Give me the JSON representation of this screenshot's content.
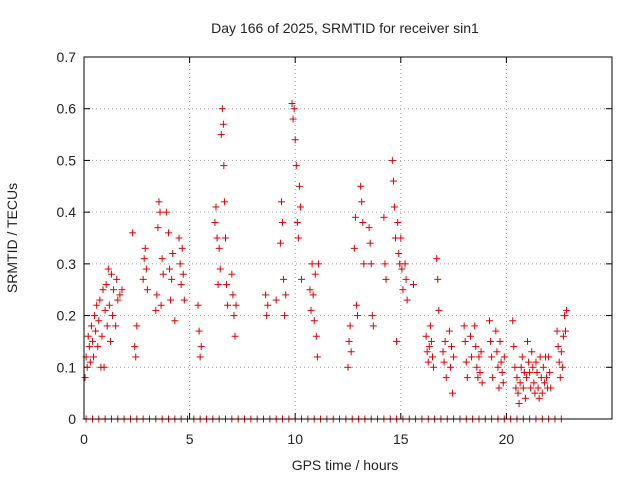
{
  "chart_data": {
    "type": "scatter",
    "title": "Day 166 of 2025, SRMTID for receiver sin1",
    "xlabel": "GPS time / hours",
    "ylabel": "SRMTID / TECUs",
    "xlim": [
      0,
      25
    ],
    "ylim": [
      0,
      0.7
    ],
    "xticks": [
      0,
      5,
      10,
      15,
      20
    ],
    "yticks": [
      0,
      0.1,
      0.2,
      0.3,
      0.4,
      0.5,
      0.6,
      0.7
    ],
    "xtick_labels": [
      "0",
      "5",
      "10",
      "15",
      "20"
    ],
    "ytick_labels": [
      "0",
      "0.1",
      "0.2",
      "0.3",
      "0.4",
      "0.5",
      "0.6",
      "0.7"
    ],
    "grid": true,
    "marker": "+",
    "color": "#e00000",
    "series": [
      {
        "name": "SRMTID",
        "points": [
          [
            0.05,
            0.08
          ],
          [
            0.1,
            0.12
          ],
          [
            0.15,
            0.1
          ],
          [
            0.2,
            0.16
          ],
          [
            0.25,
            0.14
          ],
          [
            0.3,
            0.11
          ],
          [
            0.35,
            0.18
          ],
          [
            0.4,
            0.15
          ],
          [
            0.45,
            0.12
          ],
          [
            0.5,
            0.2
          ],
          [
            0.55,
            0.17
          ],
          [
            0.6,
            0.22
          ],
          [
            0.65,
            0.14
          ],
          [
            0.7,
            0.19
          ],
          [
            0.75,
            0.23
          ],
          [
            0.8,
            0.1
          ],
          [
            0.85,
            0.16
          ],
          [
            0.9,
            0.25
          ],
          [
            0.95,
            0.1
          ],
          [
            1.0,
            0.21
          ],
          [
            1.05,
            0.26
          ],
          [
            1.1,
            0.18
          ],
          [
            1.15,
            0.29
          ],
          [
            1.2,
            0.22
          ],
          [
            1.25,
            0.15
          ],
          [
            1.3,
            0.28
          ],
          [
            1.35,
            0.2
          ],
          [
            1.4,
            0.25
          ],
          [
            1.5,
            0.18
          ],
          [
            1.55,
            0.27
          ],
          [
            1.6,
            0.23
          ],
          [
            1.7,
            0.24
          ],
          [
            1.8,
            0.25
          ],
          [
            2.3,
            0.36
          ],
          [
            2.4,
            0.14
          ],
          [
            2.45,
            0.12
          ],
          [
            2.5,
            0.18
          ],
          [
            2.8,
            0.27
          ],
          [
            2.85,
            0.31
          ],
          [
            2.9,
            0.33
          ],
          [
            2.95,
            0.29
          ],
          [
            3.0,
            0.25
          ],
          [
            3.4,
            0.21
          ],
          [
            3.45,
            0.24
          ],
          [
            3.5,
            0.37
          ],
          [
            3.55,
            0.42
          ],
          [
            3.6,
            0.4
          ],
          [
            3.65,
            0.22
          ],
          [
            3.7,
            0.31
          ],
          [
            3.75,
            0.28
          ],
          [
            3.9,
            0.4
          ],
          [
            4.0,
            0.36
          ],
          [
            4.05,
            0.29
          ],
          [
            4.1,
            0.23
          ],
          [
            4.15,
            0.27
          ],
          [
            4.2,
            0.32
          ],
          [
            4.3,
            0.19
          ],
          [
            4.5,
            0.35
          ],
          [
            4.55,
            0.3
          ],
          [
            4.6,
            0.26
          ],
          [
            4.65,
            0.33
          ],
          [
            4.7,
            0.28
          ],
          [
            4.75,
            0.23
          ],
          [
            5.4,
            0.22
          ],
          [
            5.45,
            0.17
          ],
          [
            5.5,
            0.12
          ],
          [
            5.55,
            0.14
          ],
          [
            6.2,
            0.38
          ],
          [
            6.25,
            0.41
          ],
          [
            6.3,
            0.35
          ],
          [
            6.35,
            0.26
          ],
          [
            6.4,
            0.33
          ],
          [
            6.45,
            0.29
          ],
          [
            6.5,
            0.55
          ],
          [
            6.55,
            0.6
          ],
          [
            6.6,
            0.57
          ],
          [
            6.62,
            0.49
          ],
          [
            6.65,
            0.42
          ],
          [
            6.7,
            0.35
          ],
          [
            6.75,
            0.26
          ],
          [
            6.8,
            0.22
          ],
          [
            7.0,
            0.28
          ],
          [
            7.05,
            0.24
          ],
          [
            7.1,
            0.2
          ],
          [
            7.15,
            0.16
          ],
          [
            7.2,
            0.22
          ],
          [
            8.6,
            0.24
          ],
          [
            8.65,
            0.2
          ],
          [
            8.7,
            0.22
          ],
          [
            9.1,
            0.23
          ],
          [
            9.3,
            0.34
          ],
          [
            9.35,
            0.42
          ],
          [
            9.4,
            0.38
          ],
          [
            9.45,
            0.27
          ],
          [
            9.5,
            0.2
          ],
          [
            9.55,
            0.24
          ],
          [
            9.85,
            0.61
          ],
          [
            9.9,
            0.58
          ],
          [
            9.95,
            0.6
          ],
          [
            10.0,
            0.54
          ],
          [
            10.05,
            0.49
          ],
          [
            10.1,
            0.38
          ],
          [
            10.15,
            0.35
          ],
          [
            10.2,
            0.45
          ],
          [
            10.25,
            0.41
          ],
          [
            10.3,
            0.27
          ],
          [
            10.7,
            0.25
          ],
          [
            10.75,
            0.21
          ],
          [
            10.8,
            0.3
          ],
          [
            10.85,
            0.24
          ],
          [
            10.9,
            0.19
          ],
          [
            10.95,
            0.28
          ],
          [
            11.0,
            0.16
          ],
          [
            11.05,
            0.12
          ],
          [
            11.1,
            0.3
          ],
          [
            12.5,
            0.1
          ],
          [
            12.55,
            0.15
          ],
          [
            12.6,
            0.18
          ],
          [
            12.65,
            0.13
          ],
          [
            12.8,
            0.33
          ],
          [
            12.85,
            0.39
          ],
          [
            12.9,
            0.22
          ],
          [
            12.95,
            0.2
          ],
          [
            13.1,
            0.45
          ],
          [
            13.15,
            0.42
          ],
          [
            13.2,
            0.38
          ],
          [
            13.25,
            0.3
          ],
          [
            13.5,
            0.37
          ],
          [
            13.55,
            0.34
          ],
          [
            13.6,
            0.3
          ],
          [
            13.65,
            0.2
          ],
          [
            13.7,
            0.18
          ],
          [
            14.2,
            0.39
          ],
          [
            14.25,
            0.3
          ],
          [
            14.3,
            0.27
          ],
          [
            14.6,
            0.5
          ],
          [
            14.65,
            0.46
          ],
          [
            14.7,
            0.41
          ],
          [
            14.75,
            0.35
          ],
          [
            14.8,
            0.15
          ],
          [
            14.85,
            0.38
          ],
          [
            14.9,
            0.32
          ],
          [
            14.95,
            0.3
          ],
          [
            15.0,
            0.35
          ],
          [
            15.05,
            0.29
          ],
          [
            15.1,
            0.25
          ],
          [
            15.2,
            0.3
          ],
          [
            15.25,
            0.27
          ],
          [
            15.3,
            0.23
          ],
          [
            15.6,
            0.26
          ],
          [
            16.2,
            0.16
          ],
          [
            16.25,
            0.13
          ],
          [
            16.3,
            0.11
          ],
          [
            16.35,
            0.14
          ],
          [
            16.4,
            0.18
          ],
          [
            16.45,
            0.15
          ],
          [
            16.5,
            0.12
          ],
          [
            16.55,
            0.1
          ],
          [
            16.7,
            0.31
          ],
          [
            16.75,
            0.27
          ],
          [
            16.8,
            0.21
          ],
          [
            17.0,
            0.13
          ],
          [
            17.05,
            0.11
          ],
          [
            17.1,
            0.15
          ],
          [
            17.15,
            0.08
          ],
          [
            17.3,
            0.17
          ],
          [
            17.35,
            0.1
          ],
          [
            17.4,
            0.14
          ],
          [
            17.45,
            0.05
          ],
          [
            17.5,
            0.12
          ],
          [
            18.0,
            0.18
          ],
          [
            18.05,
            0.15
          ],
          [
            18.1,
            0.11
          ],
          [
            18.15,
            0.08
          ],
          [
            18.3,
            0.16
          ],
          [
            18.35,
            0.12
          ],
          [
            18.5,
            0.18
          ],
          [
            18.55,
            0.14
          ],
          [
            18.6,
            0.1
          ],
          [
            18.65,
            0.08
          ],
          [
            18.7,
            0.12
          ],
          [
            18.75,
            0.09
          ],
          [
            18.8,
            0.13
          ],
          [
            18.85,
            0.07
          ],
          [
            19.2,
            0.19
          ],
          [
            19.25,
            0.15
          ],
          [
            19.3,
            0.12
          ],
          [
            19.35,
            0.08
          ],
          [
            19.5,
            0.17
          ],
          [
            19.55,
            0.13
          ],
          [
            19.6,
            0.1
          ],
          [
            19.65,
            0.06
          ],
          [
            19.7,
            0.15
          ],
          [
            19.75,
            0.11
          ],
          [
            19.8,
            0.09
          ],
          [
            19.85,
            0.07
          ],
          [
            19.9,
            0.12
          ],
          [
            20.3,
            0.19
          ],
          [
            20.35,
            0.14
          ],
          [
            20.4,
            0.1
          ],
          [
            20.45,
            0.06
          ],
          [
            20.5,
            0.08
          ],
          [
            20.55,
            0.05
          ],
          [
            20.6,
            0.03
          ],
          [
            20.65,
            0.07
          ],
          [
            20.7,
            0.1
          ],
          [
            20.75,
            0.12
          ],
          [
            20.8,
            0.06
          ],
          [
            20.85,
            0.09
          ],
          [
            20.9,
            0.04
          ],
          [
            20.95,
            0.08
          ],
          [
            21.0,
            0.15
          ],
          [
            21.05,
            0.11
          ],
          [
            21.1,
            0.09
          ],
          [
            21.15,
            0.06
          ],
          [
            21.2,
            0.13
          ],
          [
            21.25,
            0.1
          ],
          [
            21.3,
            0.07
          ],
          [
            21.35,
            0.05
          ],
          [
            21.4,
            0.11
          ],
          [
            21.45,
            0.09
          ],
          [
            21.5,
            0.06
          ],
          [
            21.55,
            0.04
          ],
          [
            21.6,
            0.12
          ],
          [
            21.65,
            0.08
          ],
          [
            21.7,
            0.05
          ],
          [
            21.75,
            0.1
          ],
          [
            21.8,
            0.07
          ],
          [
            21.85,
            0.12
          ],
          [
            21.9,
            0.08
          ],
          [
            21.95,
            0.06
          ],
          [
            22.0,
            0.12
          ],
          [
            22.05,
            0.09
          ],
          [
            22.1,
            0.06
          ],
          [
            22.4,
            0.17
          ],
          [
            22.45,
            0.14
          ],
          [
            22.5,
            0.11
          ],
          [
            22.55,
            0.08
          ],
          [
            22.6,
            0.13
          ],
          [
            22.65,
            0.1
          ],
          [
            22.7,
            0.16
          ],
          [
            22.75,
            0.2
          ],
          [
            22.8,
            0.17
          ],
          [
            22.85,
            0.21
          ]
        ],
        "zero_points_x": [
          0.1,
          0.4,
          0.7,
          1.0,
          1.3,
          1.6,
          1.9,
          2.2,
          2.5,
          2.8,
          3.1,
          3.4,
          3.7,
          4.0,
          4.3,
          4.6,
          4.9,
          5.2,
          5.5,
          5.8,
          6.1,
          6.4,
          6.7,
          7.0,
          7.3,
          7.6,
          7.9,
          8.2,
          8.5,
          8.8,
          9.1,
          9.4,
          9.7,
          10.0,
          10.3,
          10.6,
          10.9,
          11.2,
          11.5,
          11.8,
          12.1,
          12.4,
          12.7,
          13.0,
          13.3,
          13.6,
          13.9,
          14.2,
          14.5,
          14.8,
          15.1,
          15.4,
          15.7,
          16.0,
          16.3,
          16.6,
          16.9,
          17.2,
          17.5,
          17.8,
          18.1,
          18.4,
          18.7,
          19.0,
          19.3,
          19.6,
          19.9,
          20.2,
          20.5,
          20.8,
          21.1,
          21.4,
          21.7,
          22.0,
          22.3,
          22.6
        ]
      }
    ]
  }
}
